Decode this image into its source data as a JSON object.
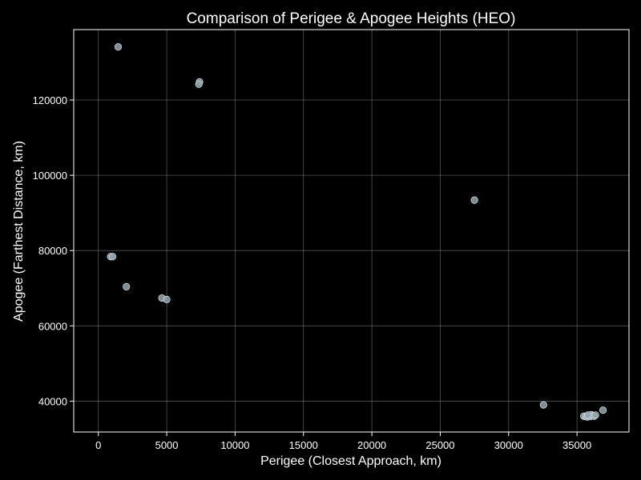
{
  "chart_data": {
    "type": "scatter",
    "title": "Comparison of Perigee & Apogee Heights (HEO)",
    "xlabel": "Perigee (Closest Approach, km)",
    "ylabel": "Apogee (Farthest Distance, km)",
    "xlim": [
      -1800,
      38800
    ],
    "ylim": [
      31800,
      138700
    ],
    "xticks": [
      0,
      5000,
      10000,
      15000,
      20000,
      25000,
      30000,
      35000
    ],
    "yticks": [
      40000,
      60000,
      80000,
      100000,
      120000
    ],
    "grid": true,
    "point_color": "#90a4ae",
    "background": "#000000",
    "points": [
      {
        "x": 1450,
        "y": 134100
      },
      {
        "x": 7400,
        "y": 124800
      },
      {
        "x": 7350,
        "y": 124200
      },
      {
        "x": 27500,
        "y": 93400
      },
      {
        "x": 900,
        "y": 78400
      },
      {
        "x": 1050,
        "y": 78400
      },
      {
        "x": 2050,
        "y": 70400
      },
      {
        "x": 4650,
        "y": 67400
      },
      {
        "x": 5000,
        "y": 67000
      },
      {
        "x": 32550,
        "y": 39000
      },
      {
        "x": 36900,
        "y": 37600
      },
      {
        "x": 35500,
        "y": 36000
      },
      {
        "x": 35650,
        "y": 35900
      },
      {
        "x": 35750,
        "y": 35800
      },
      {
        "x": 35850,
        "y": 36100
      },
      {
        "x": 35950,
        "y": 35900
      },
      {
        "x": 36050,
        "y": 36400
      },
      {
        "x": 36150,
        "y": 36100
      },
      {
        "x": 36250,
        "y": 36000
      },
      {
        "x": 36350,
        "y": 36300
      },
      {
        "x": 35800,
        "y": 36300
      }
    ]
  }
}
